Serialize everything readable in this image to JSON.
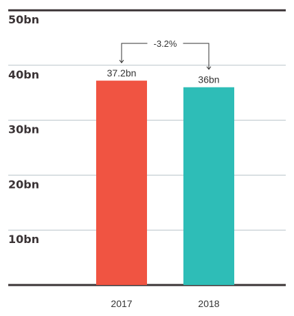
{
  "chart_data": {
    "type": "bar",
    "categories": [
      "2017",
      "2018"
    ],
    "values": [
      37.2,
      36
    ],
    "data_labels": [
      "37.2bn",
      "36bn"
    ],
    "colors": [
      "#f05442",
      "#2ebdb7"
    ],
    "ylim": [
      0,
      50
    ],
    "yticks": [
      10,
      20,
      30,
      40,
      50
    ],
    "ytick_labels": [
      "10bn",
      "20bn",
      "30bn",
      "40bn",
      "50bn"
    ],
    "grid": true,
    "legend": "none",
    "annotation": {
      "text": "-3.2%",
      "from": "2017",
      "to": "2018"
    },
    "title": "",
    "xlabel": "",
    "ylabel": ""
  },
  "colors": {
    "grid": "#b8c2c9",
    "axis": "#3a3335",
    "text": "#333333",
    "tick_text": "#3a3335"
  }
}
